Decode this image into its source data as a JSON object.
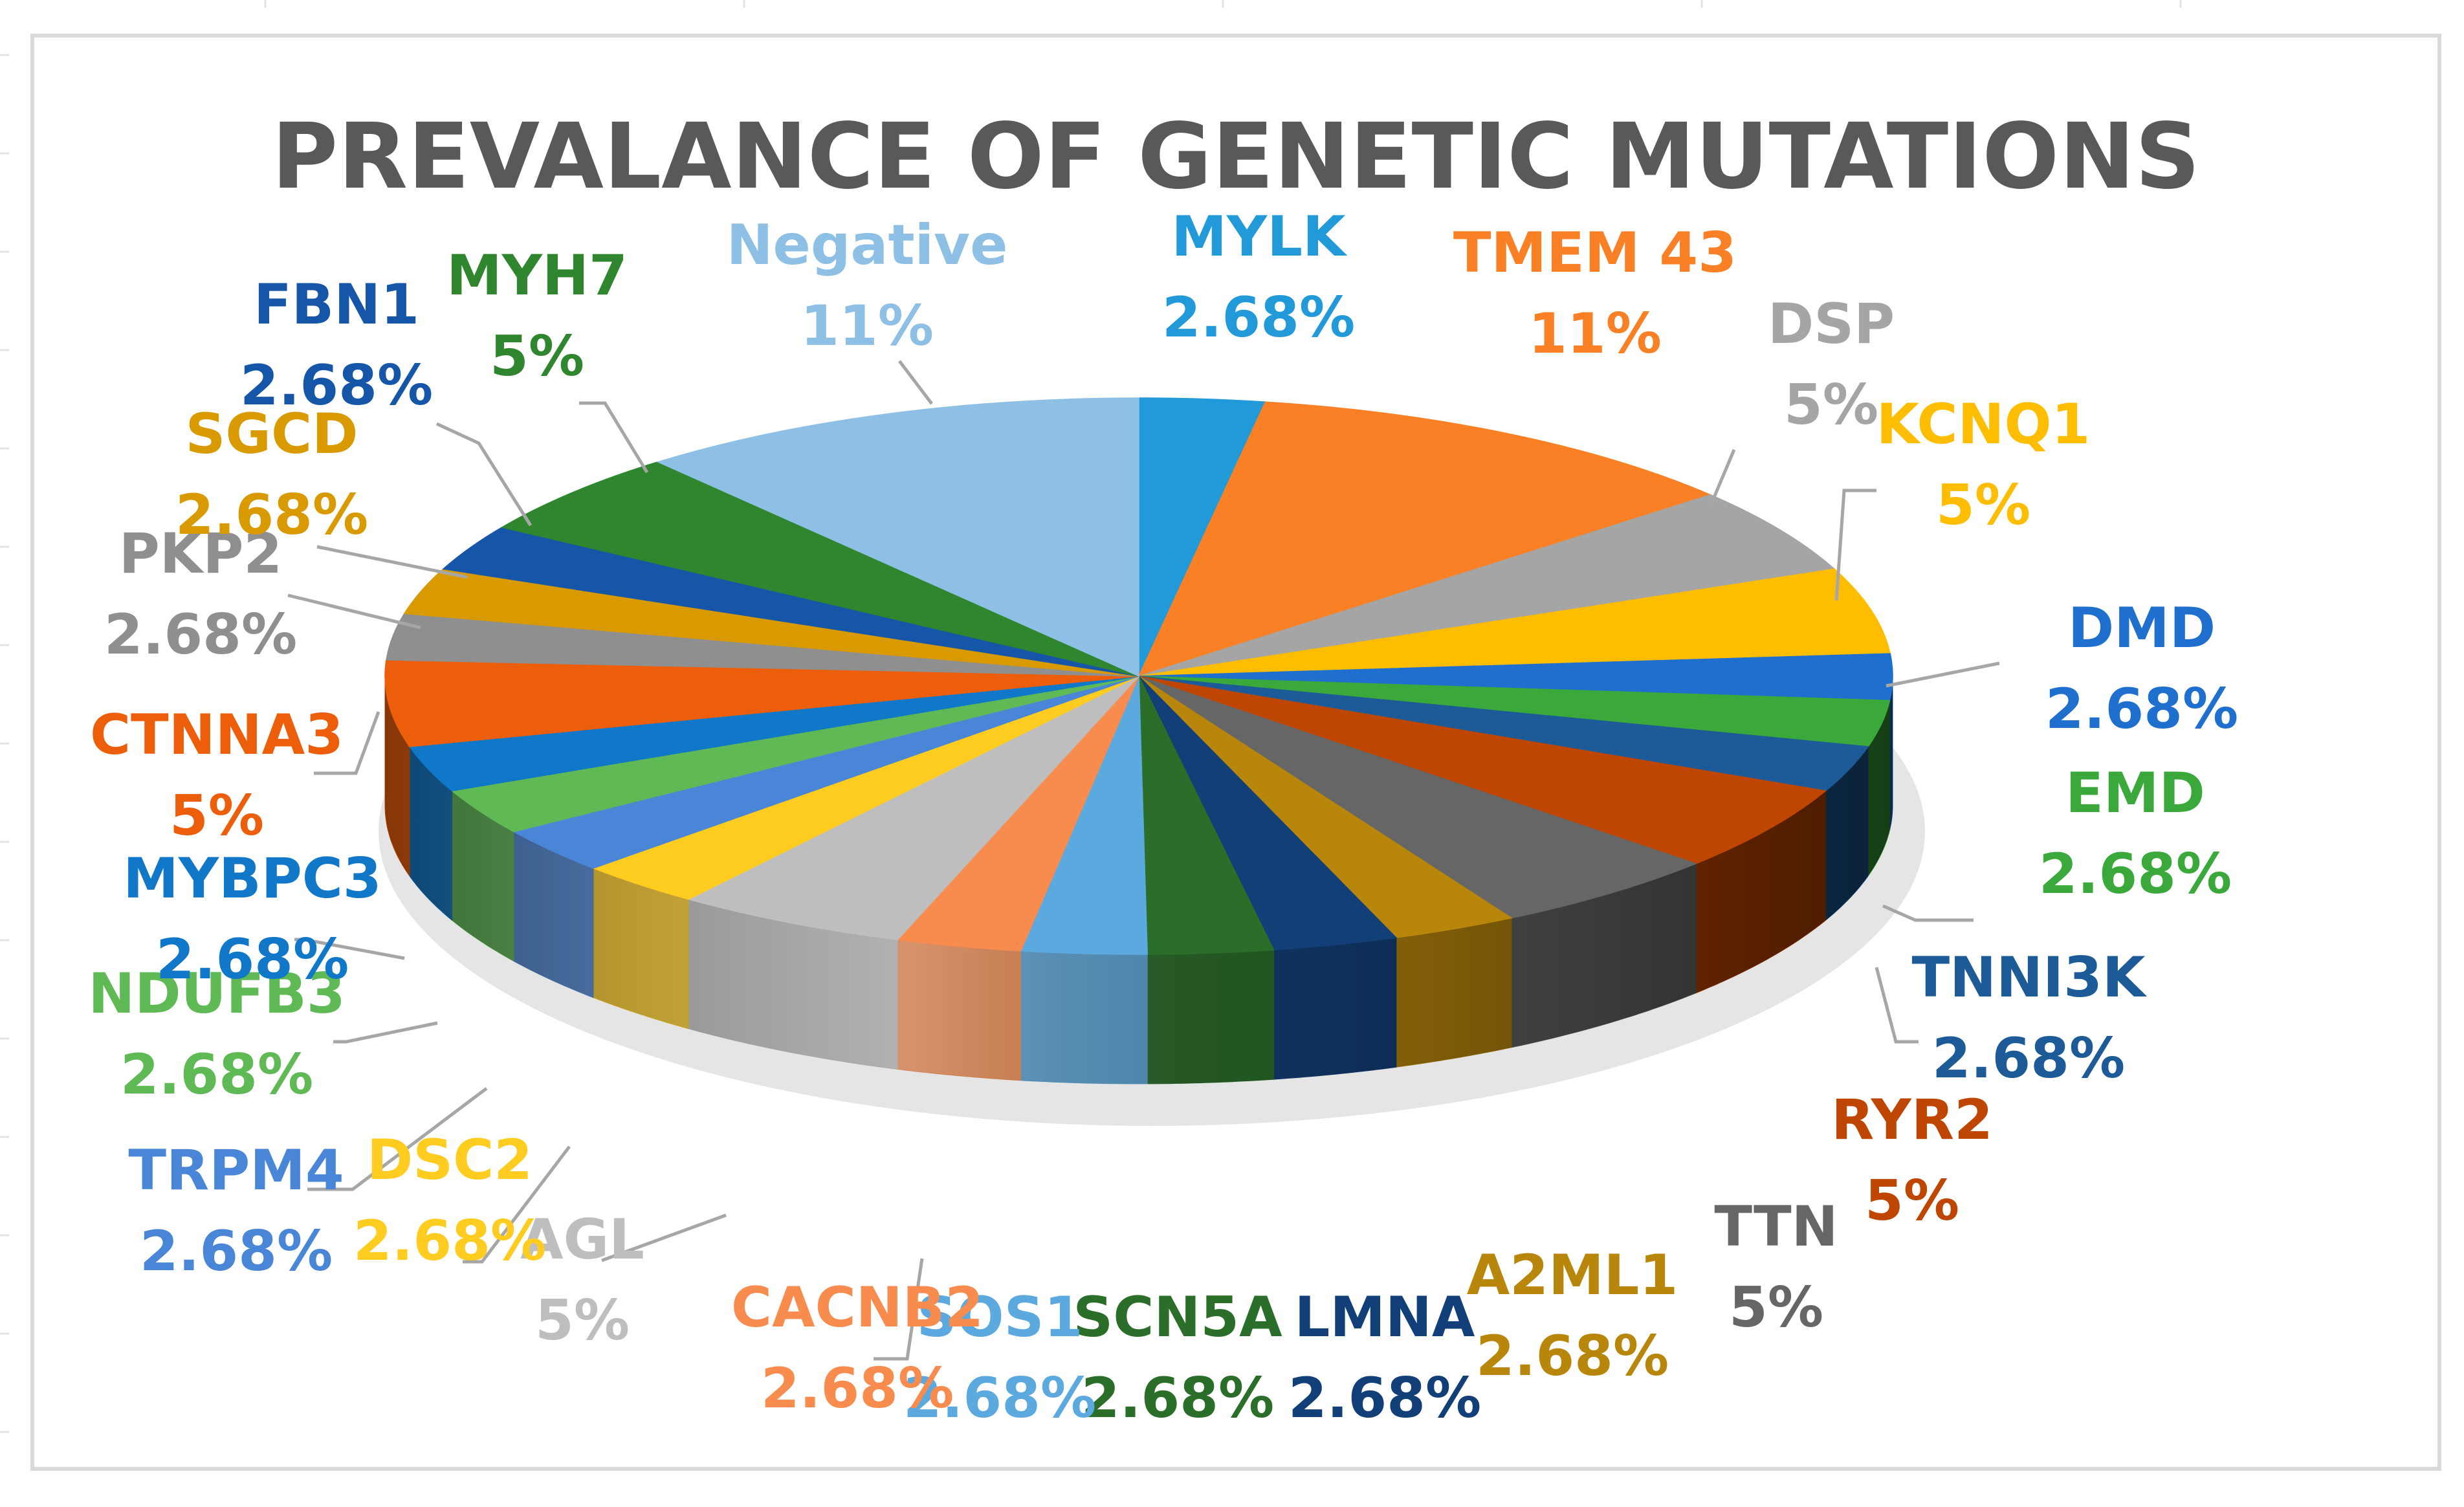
{
  "chart_data": {
    "type": "pie",
    "style": "3d",
    "title": "PREVALANCE OF GENETIC MUTATIONS",
    "unit": "%",
    "slices": [
      {
        "label": "MYLK",
        "value_text": "2.68%",
        "value": 2.68,
        "color": "#2299d8"
      },
      {
        "label": "TMEM 43",
        "value_text": "11%",
        "value": 11,
        "color": "#f98024"
      },
      {
        "label": "DSP",
        "value_text": "5%",
        "value": 5,
        "color": "#a5a5a5"
      },
      {
        "label": "KCNQ1",
        "value_text": "5%",
        "value": 5,
        "color": "#ffbd00"
      },
      {
        "label": "DMD",
        "value_text": "2.68%",
        "value": 2.68,
        "color": "#1e6fce"
      },
      {
        "label": "EMD",
        "value_text": "2.68%",
        "value": 2.68,
        "color": "#3aa83a"
      },
      {
        "label": "TNNI3K",
        "value_text": "2.68%",
        "value": 2.68,
        "color": "#1c5b97"
      },
      {
        "label": "RYR2",
        "value_text": "5%",
        "value": 5,
        "color": "#bf4600"
      },
      {
        "label": "TTN",
        "value_text": "5%",
        "value": 5,
        "color": "#666666"
      },
      {
        "label": "A2ML1",
        "value_text": "2.68%",
        "value": 2.68,
        "color": "#b8860b"
      },
      {
        "label": "LMNA",
        "value_text": "2.68%",
        "value": 2.68,
        "color": "#123f78"
      },
      {
        "label": "SCN5A",
        "value_text": "2.68%",
        "value": 2.68,
        "color": "#2a6e2a"
      },
      {
        "label": "SOS1",
        "value_text": "2.68%",
        "value": 2.68,
        "color": "#5ba9df"
      },
      {
        "label": "CACNB2",
        "value_text": "2.68%",
        "value": 2.68,
        "color": "#f88c4e"
      },
      {
        "label": "AGL",
        "value_text": "5%",
        "value": 5,
        "color": "#bebebe"
      },
      {
        "label": "DSC2",
        "value_text": "2.68%",
        "value": 2.68,
        "color": "#ffcc1f"
      },
      {
        "label": "TRPM4",
        "value_text": "2.68%",
        "value": 2.68,
        "color": "#4a86d8"
      },
      {
        "label": "NDUFB3",
        "value_text": "2.68%",
        "value": 2.68,
        "color": "#5fba55"
      },
      {
        "label": "MYBPC3",
        "value_text": "2.68%",
        "value": 2.68,
        "color": "#1177c8"
      },
      {
        "label": "CTNNA3",
        "value_text": "5%",
        "value": 5,
        "color": "#ed5e0a"
      },
      {
        "label": "PKP2",
        "value_text": "2.68%",
        "value": 2.68,
        "color": "#8f8f8f"
      },
      {
        "label": "SGCD",
        "value_text": "2.68%",
        "value": 2.68,
        "color": "#d99a00"
      },
      {
        "label": "FBN1",
        "value_text": "2.68%",
        "value": 2.68,
        "color": "#1656a8"
      },
      {
        "label": "MYH7",
        "value_text": "5%",
        "value": 5,
        "color": "#2f862f"
      },
      {
        "label": "Negative",
        "value_text": "11%",
        "value": 11,
        "color": "#8ec0e6"
      }
    ]
  }
}
